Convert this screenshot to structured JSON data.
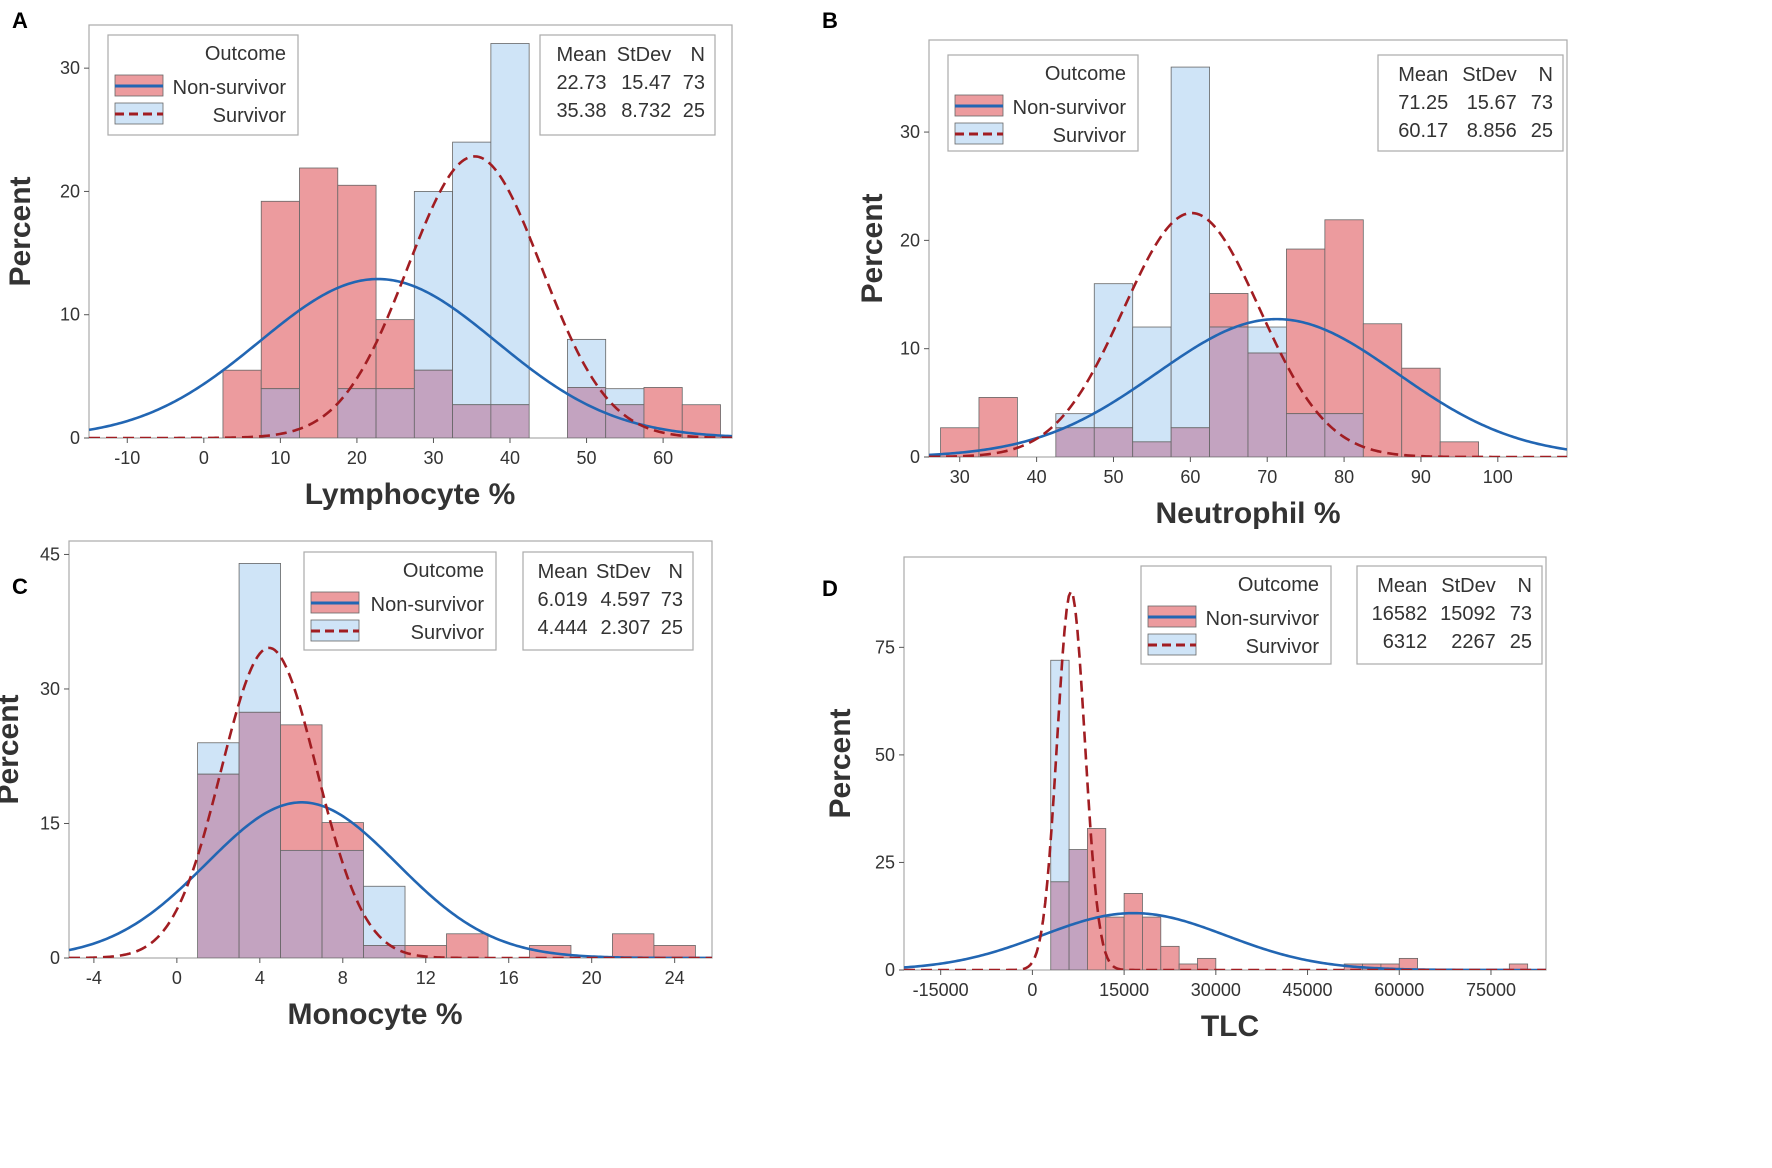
{
  "colors": {
    "nonsurvivor_fill": "#ec9b9e",
    "survivor_fill": "#cfe4f7",
    "overlap_fill": "#c3a3c0",
    "nonsurvivor_curve": "#2266b3",
    "survivor_curve": "#a11d22",
    "bar_edge": "#666666",
    "frame": "#aaaaaa"
  },
  "chart_data": [
    {
      "panel": "A",
      "type": "histogram",
      "xlabel": "Lymphocyte %",
      "ylabel": "Percent",
      "xlim": [
        -15,
        69
      ],
      "ylim": [
        0,
        33.5
      ],
      "xticks": [
        -10,
        0,
        10,
        20,
        30,
        40,
        50,
        60
      ],
      "yticks": [
        0,
        10,
        20,
        30
      ],
      "bin_edges": [
        2.5,
        7.5,
        12.5,
        17.5,
        22.5,
        27.5,
        32.5,
        37.5,
        42.5,
        47.5,
        52.5,
        57.5,
        62.5,
        67.5
      ],
      "legend": {
        "title": "Outcome",
        "entries": [
          "Non-survivor",
          "Survivor"
        ]
      },
      "stats": {
        "headers": [
          "Mean",
          "StDev",
          "N"
        ],
        "rows": [
          [
            "22.73",
            "15.47",
            "73"
          ],
          [
            "35.38",
            "8.732",
            "25"
          ]
        ]
      },
      "series": [
        {
          "name": "Non-survivor",
          "values": [
            5.5,
            19.2,
            21.9,
            20.5,
            9.6,
            5.5,
            2.7,
            2.7,
            0,
            4.1,
            2.7,
            4.1,
            2.7
          ],
          "mean": 22.73,
          "stdev": 15.47,
          "curve": "solid",
          "curve_scale": 500
        },
        {
          "name": "Survivor",
          "values": [
            0,
            4,
            0,
            4,
            4,
            20,
            24,
            32,
            0,
            8,
            4,
            0,
            0
          ],
          "mean": 35.38,
          "stdev": 8.732,
          "curve": "dashed",
          "curve_scale": 500
        }
      ]
    },
    {
      "panel": "B",
      "type": "histogram",
      "xlabel": "Neutrophil %",
      "ylabel": "Percent",
      "xlim": [
        26,
        109
      ],
      "ylim": [
        0,
        38.5
      ],
      "xticks": [
        30,
        40,
        50,
        60,
        70,
        80,
        90,
        100
      ],
      "yticks": [
        0,
        10,
        20,
        30
      ],
      "bin_edges": [
        27.5,
        32.5,
        37.5,
        42.5,
        47.5,
        52.5,
        57.5,
        62.5,
        67.5,
        72.5,
        77.5,
        82.5,
        87.5,
        92.5,
        97.5
      ],
      "legend": {
        "title": "Outcome",
        "entries": [
          "Non-survivor",
          "Survivor"
        ]
      },
      "stats": {
        "headers": [
          "Mean",
          "StDev",
          "N"
        ],
        "rows": [
          [
            "71.25",
            "15.67",
            "73"
          ],
          [
            "60.17",
            "8.856",
            "25"
          ]
        ]
      },
      "series": [
        {
          "name": "Non-survivor",
          "values": [
            2.7,
            5.5,
            0,
            2.7,
            2.7,
            1.4,
            2.7,
            15.1,
            9.6,
            19.2,
            21.9,
            12.3,
            8.2,
            1.4
          ],
          "mean": 71.25,
          "stdev": 15.67,
          "curve": "solid",
          "curve_scale": 500
        },
        {
          "name": "Survivor",
          "values": [
            0,
            0,
            0,
            4,
            16,
            12,
            36,
            12,
            12,
            4,
            4,
            0,
            0,
            0
          ],
          "mean": 60.17,
          "stdev": 8.856,
          "curve": "dashed",
          "curve_scale": 500
        }
      ]
    },
    {
      "panel": "C",
      "type": "histogram",
      "xlabel": "Monocyte %",
      "ylabel": "Percent",
      "xlim": [
        -5.2,
        25.8
      ],
      "ylim": [
        0,
        46.5
      ],
      "xticks": [
        -4,
        0,
        4,
        8,
        12,
        16,
        20,
        24
      ],
      "yticks": [
        0,
        15,
        30,
        45
      ],
      "bin_edges": [
        1,
        3,
        5,
        7,
        9,
        11,
        13,
        15,
        17,
        19,
        21,
        23,
        25
      ],
      "legend": {
        "title": "Outcome",
        "entries": [
          "Non-survivor",
          "Survivor"
        ]
      },
      "stats": {
        "headers": [
          "Mean",
          "StDev",
          "N"
        ],
        "rows": [
          [
            "6.019",
            "4.597",
            "73"
          ],
          [
            "4.444",
            "2.307",
            "25"
          ]
        ]
      },
      "series": [
        {
          "name": "Non-survivor",
          "values": [
            20.5,
            27.4,
            26.0,
            15.1,
            1.4,
            1.4,
            2.7,
            0,
            1.4,
            0,
            2.7,
            1.4
          ],
          "mean": 6.019,
          "stdev": 4.597,
          "curve": "solid",
          "curve_scale": 200
        },
        {
          "name": "Survivor",
          "values": [
            24,
            44,
            12,
            12,
            8,
            0,
            0,
            0,
            0,
            0,
            0,
            0
          ],
          "mean": 4.444,
          "stdev": 2.307,
          "curve": "dashed",
          "curve_scale": 200
        }
      ]
    },
    {
      "panel": "D",
      "type": "histogram",
      "xlabel": "TLC",
      "ylabel": "Percent",
      "xlim": [
        -21000,
        84000
      ],
      "ylim": [
        0,
        96
      ],
      "xticks": [
        -15000,
        0,
        15000,
        30000,
        45000,
        60000,
        75000
      ],
      "yticks": [
        0,
        25,
        50,
        75
      ],
      "bin_edges": [
        3000,
        6000,
        9000,
        12000,
        15000,
        18000,
        21000,
        24000,
        27000,
        30000,
        33000,
        36000,
        39000,
        42000,
        45000,
        48000,
        51000,
        54000,
        57000,
        60000,
        63000,
        66000,
        69000,
        72000,
        75000,
        78000,
        81000
      ],
      "legend": {
        "title": "Outcome",
        "entries": [
          "Non-survivor",
          "Survivor"
        ]
      },
      "stats": {
        "headers": [
          "Mean",
          "StDev",
          "N"
        ],
        "rows": [
          [
            "16582",
            "15092",
            "73"
          ],
          [
            "6312",
            "2267",
            "25"
          ]
        ]
      },
      "series": [
        {
          "name": "Non-survivor",
          "values": [
            20.5,
            28.0,
            32.9,
            12.3,
            17.8,
            12.3,
            5.5,
            1.4,
            2.7,
            0,
            0,
            0,
            0,
            0,
            0,
            0,
            1.4,
            1.4,
            1.4,
            2.7,
            0,
            0,
            0,
            0,
            0,
            1.4
          ],
          "mean": 16582,
          "stdev": 15092,
          "curve": "solid",
          "curve_scale": 500000
        },
        {
          "name": "Survivor",
          "values": [
            72,
            28,
            0,
            0,
            0,
            0,
            0,
            0,
            0,
            0,
            0,
            0,
            0,
            0,
            0,
            0,
            0,
            0,
            0,
            0,
            0,
            0,
            0,
            0,
            0,
            0
          ],
          "mean": 6312,
          "stdev": 2267,
          "curve": "dashed",
          "curve_scale": 500000
        }
      ]
    }
  ]
}
